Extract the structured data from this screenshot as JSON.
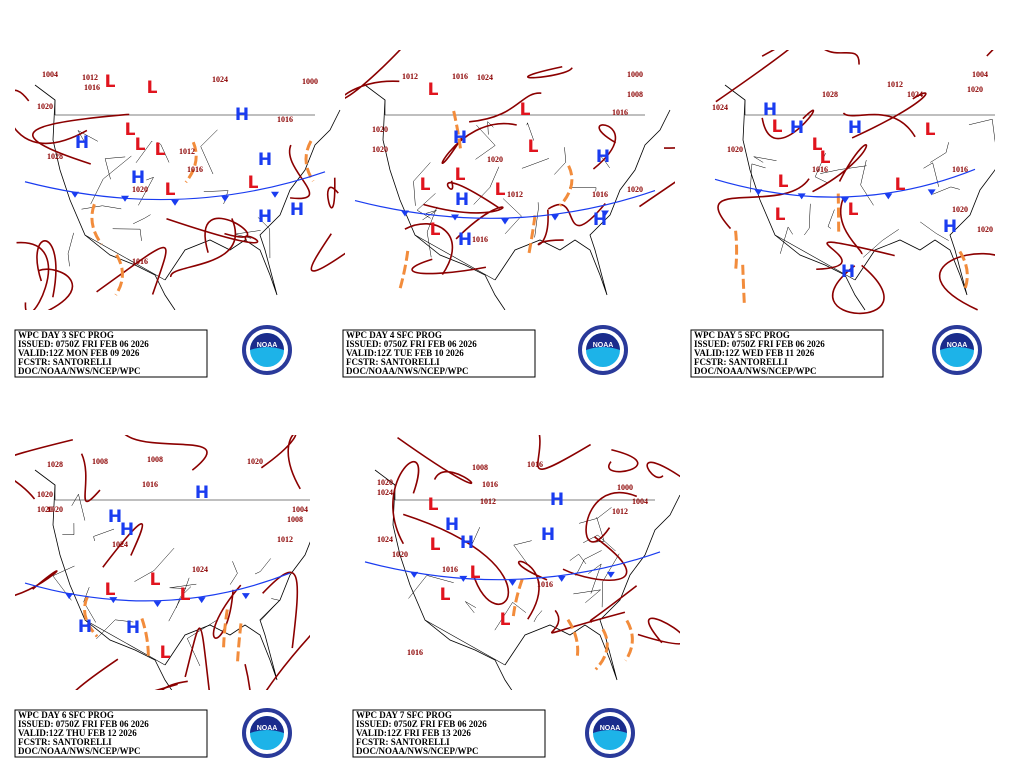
{
  "panels": [
    {
      "caption": [
        "WPC DAY 3 SFC PROG",
        "ISSUED: 0750Z FRI FEB 06 2026",
        "VALID:12Z MON FEB 09 2026",
        "FCSTR: SANTORELLI",
        "DOC/NOAA/NWS/NCEP/WPC"
      ],
      "labels": [
        "1004",
        "1012",
        "1016",
        "1020",
        "1024",
        "1000",
        "1016",
        "1028",
        "1020",
        "1016",
        "1012",
        "1016",
        "H",
        "H",
        "H",
        "H",
        "H",
        "H",
        "L",
        "L",
        "L",
        "L",
        "L",
        "L",
        "L"
      ]
    },
    {
      "caption": [
        "WPC DAY 4 SFC PROG",
        "ISSUED: 0750Z FRI FEB 06 2026",
        "VALID:12Z TUE FEB 10 2026",
        "FCSTR: SANTORELLI",
        "DOC/NOAA/NWS/NCEP/WPC"
      ],
      "labels": [
        "1012",
        "1016",
        "1024",
        "1000",
        "1008",
        "1016",
        "1020",
        "1020",
        "1020",
        "1016",
        "1012",
        "1016",
        "1020",
        "H",
        "H",
        "H",
        "H",
        "H",
        "L",
        "L",
        "L",
        "L",
        "L",
        "L",
        "L"
      ]
    },
    {
      "caption": [
        "WPC DAY 5 SFC PROG",
        "ISSUED: 0750Z FRI FEB 06 2026",
        "VALID:12Z WED FEB 11 2026",
        "FCSTR: SANTORELLI",
        "DOC/NOAA/NWS/NCEP/WPC"
      ],
      "labels": [
        "1004",
        "1012",
        "1024",
        "1028",
        "1020",
        "1020",
        "1016",
        "1024",
        "1016",
        "1020",
        "1020",
        "H",
        "H",
        "H",
        "H",
        "H",
        "L",
        "L",
        "L",
        "L",
        "L",
        "L",
        "L",
        "L"
      ]
    },
    {
      "caption": [
        "WPC DAY 6 SFC PROG",
        "ISSUED: 0750Z FRI FEB 06 2026",
        "VALID:12Z THU FEB 12 2026",
        "FCSTR: SANTORELLI",
        "DOC/NOAA/NWS/NCEP/WPC"
      ],
      "labels": [
        "1028",
        "1008",
        "1008",
        "1016",
        "1020",
        "1020",
        "1024",
        "1024",
        "1012",
        "1004",
        "1008",
        "1020",
        "1020",
        "H",
        "H",
        "H",
        "H",
        "H",
        "L",
        "L",
        "L",
        "L"
      ]
    },
    {
      "caption": [
        "WPC DAY 7 SFC PROG",
        "ISSUED: 0750Z FRI FEB 06 2026",
        "VALID:12Z FRI FEB 13 2026",
        "FCSTR: SANTORELLI",
        "DOC/NOAA/NWS/NCEP/WPC"
      ],
      "labels": [
        "1008",
        "1016",
        "1020",
        "1024",
        "1012",
        "1016",
        "1000",
        "1004",
        "1012",
        "1024",
        "1020",
        "1016",
        "1016",
        "1016",
        "H",
        "H",
        "H",
        "H",
        "L",
        "L",
        "L",
        "L",
        "L"
      ]
    }
  ],
  "logo_text": "NOAA"
}
